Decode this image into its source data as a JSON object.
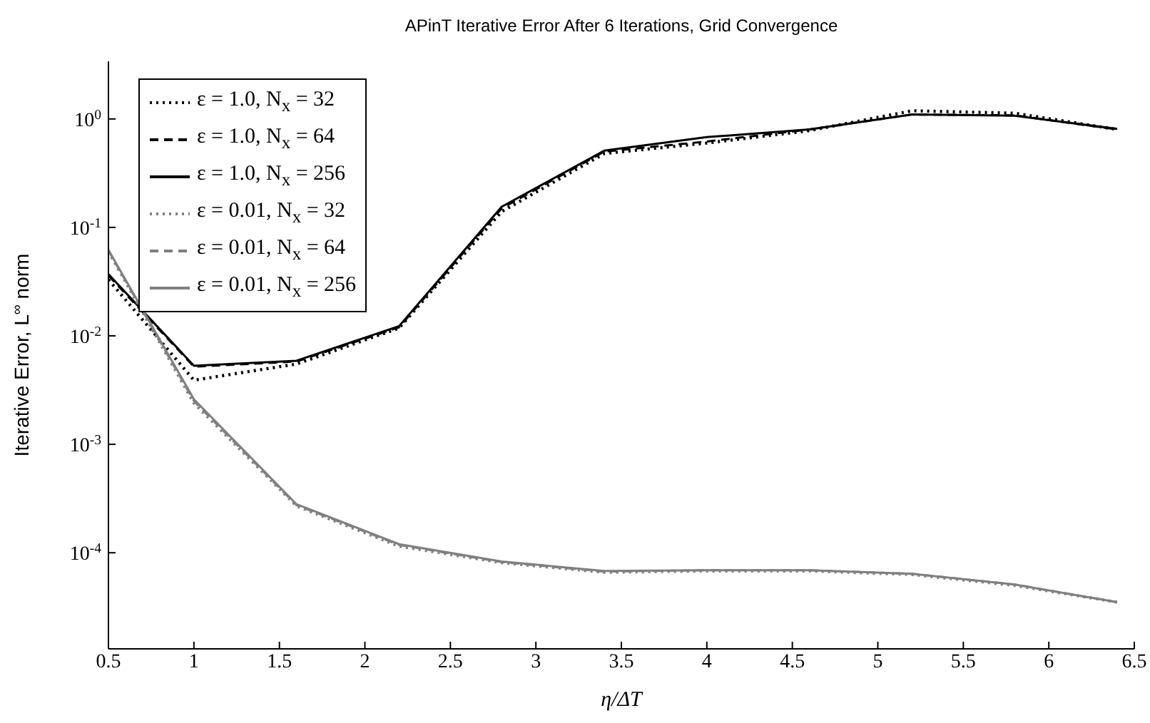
{
  "chart_data": {
    "type": "line",
    "title": "APinT Iterative Error After 6 Iterations, Grid Convergence",
    "xlabel": "η/ΔT",
    "ylabel": "Iterative Error, L$^{∞}$ norm",
    "x": [
      0.5,
      1.0,
      1.6,
      2.2,
      2.8,
      3.4,
      4.0,
      4.6,
      5.2,
      5.8,
      6.4
    ],
    "series": [
      {
        "name": "ε = 1.0, N$_{x}$ = 32",
        "color": "#000000",
        "line_style": "dotted",
        "values": [
          0.033,
          0.0039,
          0.0055,
          0.0118,
          0.14,
          0.48,
          0.6,
          0.78,
          1.19,
          1.13,
          0.8
        ]
      },
      {
        "name": "ε = 1.0, N$_{x}$ = 64",
        "color": "#000000",
        "line_style": "dashed",
        "values": [
          0.036,
          0.0052,
          0.0058,
          0.012,
          0.15,
          0.5,
          0.62,
          0.8,
          1.1,
          1.08,
          0.8
        ]
      },
      {
        "name": "ε = 1.0, N$_{x}$ = 256",
        "color": "#000000",
        "line_style": "solid",
        "values": [
          0.037,
          0.0053,
          0.0059,
          0.0123,
          0.155,
          0.51,
          0.68,
          0.8,
          1.1,
          1.07,
          0.81
        ]
      },
      {
        "name": "ε = 0.01, N$_{x}$ = 32",
        "color": "#808080",
        "line_style": "dotted",
        "values": [
          0.06,
          0.0024,
          0.00027,
          0.000115,
          8.1e-05,
          6.6e-05,
          6.8e-05,
          6.8e-05,
          6.3e-05,
          5e-05,
          3.5e-05
        ]
      },
      {
        "name": "ε = 0.01, N$_{x}$ = 64",
        "color": "#808080",
        "line_style": "dashed",
        "values": [
          0.061,
          0.0025,
          0.000275,
          0.000118,
          8.2e-05,
          6.7e-05,
          6.9e-05,
          6.9e-05,
          6.4e-05,
          5.1e-05,
          3.5e-05
        ]
      },
      {
        "name": "ε = 0.01, N$_{x}$ = 256",
        "color": "#808080",
        "line_style": "solid",
        "values": [
          0.062,
          0.0026,
          0.00028,
          0.00012,
          8.3e-05,
          6.8e-05,
          6.9e-05,
          6.9e-05,
          6.4e-05,
          5.1e-05,
          3.5e-05
        ]
      }
    ],
    "xlim": [
      0.5,
      6.5
    ],
    "xticks": [
      0.5,
      1,
      1.5,
      2,
      2.5,
      3,
      3.5,
      4,
      4.5,
      5,
      5.5,
      6,
      6.5
    ],
    "log": "y",
    "ylim": [
      1.3e-05,
      3.4
    ],
    "yticks": [
      {
        "value": 0.0001,
        "label": "10$^{-4}$"
      },
      {
        "value": 0.001,
        "label": "10$^{-3}$"
      },
      {
        "value": 0.01,
        "label": "10$^{-2}$"
      },
      {
        "value": 0.1,
        "label": "10$^{-1}$"
      },
      {
        "value": 1,
        "label": "10$^{0}$"
      }
    ],
    "grid": false,
    "legend": "top left",
    "marker": "none"
  }
}
